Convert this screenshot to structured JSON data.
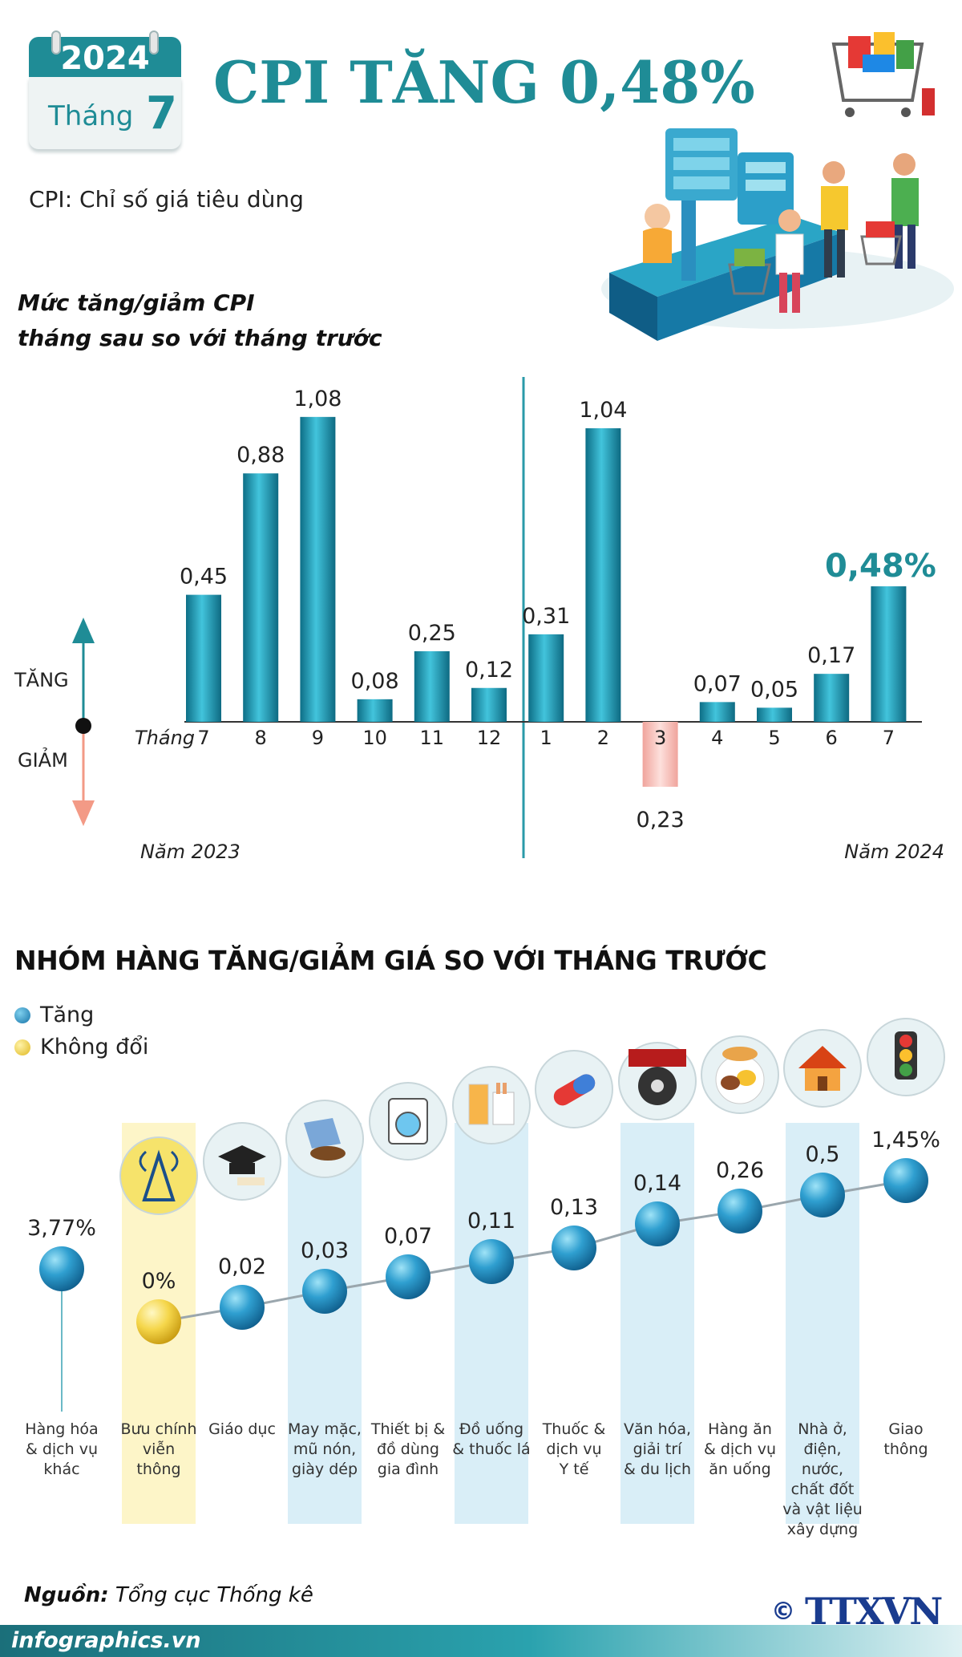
{
  "header": {
    "calendar_year": "2024",
    "calendar_month_label": "Tháng",
    "calendar_month_number": "7",
    "title": "CPI TĂNG 0,48%",
    "subtitle": "CPI: Chỉ số giá tiêu dùng"
  },
  "chart_data": [
    {
      "type": "bar",
      "title": "Mức tăng/giảm CPI tháng sau so với tháng trước",
      "title_lines": [
        "Mức tăng/giảm CPI",
        "tháng sau so với tháng trước"
      ],
      "x_axis_label": "Tháng",
      "categories": [
        "7",
        "8",
        "9",
        "10",
        "11",
        "12",
        "1",
        "2",
        "3",
        "4",
        "5",
        "6",
        "7"
      ],
      "values": [
        0.45,
        0.88,
        1.08,
        0.08,
        0.25,
        0.12,
        0.31,
        1.04,
        -0.23,
        0.07,
        0.05,
        0.17,
        0.48
      ],
      "value_labels": [
        "0,45",
        "0,88",
        "1,08",
        "0,08",
        "0,25",
        "0,12",
        "0,31",
        "1,04",
        "0,23",
        "0,07",
        "0,05",
        "0,17",
        "0,48%"
      ],
      "year_groups": [
        {
          "label": "Năm 2023",
          "categories": [
            "7",
            "8",
            "9",
            "10",
            "11",
            "12"
          ]
        },
        {
          "label": "Năm 2024",
          "categories": [
            "1",
            "2",
            "3",
            "4",
            "5",
            "6",
            "7"
          ]
        }
      ],
      "direction_labels": {
        "up": "TĂNG",
        "down": "GIẢM"
      },
      "highlight_last": true,
      "colors": {
        "increase": "#1f8ea0",
        "decrease": "#f6b6b0",
        "highlight_text": "#1f8c96"
      }
    },
    {
      "type": "scatter",
      "title": "NHÓM HÀNG TĂNG/GIẢM GIÁ SO VỚI THÁNG TRƯỚC",
      "legend": [
        {
          "label": "Tăng",
          "color": "#1e88b8"
        },
        {
          "label": "Không đổi",
          "color": "#f2d24a"
        }
      ],
      "categories": [
        "Hàng hóa & dịch vụ khác",
        "Bưu chính viễn thông",
        "Giáo dục",
        "May mặc, mũ nón, giày dép",
        "Thiết bị & đồ dùng gia đình",
        "Đồ uống & thuốc lá",
        "Thuốc & dịch vụ Y tế",
        "Văn hóa, giải trí & du lịch",
        "Hàng ăn & dịch vụ ăn uống",
        "Nhà ở, điện, nước, chất đốt và vật liệu xây dựng",
        "Giao thông"
      ],
      "values": [
        3.77,
        0,
        0.02,
        0.03,
        0.07,
        0.11,
        0.13,
        0.14,
        0.26,
        0.5,
        1.45
      ],
      "value_labels": [
        "3,77%",
        "0%",
        "0,02",
        "0,03",
        "0,07",
        "0,11",
        "0,13",
        "0,14",
        "0,26",
        "0,5",
        "1,45%"
      ],
      "status": [
        "Tăng",
        "Không đổi",
        "Tăng",
        "Tăng",
        "Tăng",
        "Tăng",
        "Tăng",
        "Tăng",
        "Tăng",
        "Tăng",
        "Tăng"
      ]
    }
  ],
  "group_label_lines": [
    [
      "Hàng hóa",
      "& dịch vụ",
      "khác"
    ],
    [
      "Bưu chính",
      "viễn",
      "thông"
    ],
    [
      "Giáo dục"
    ],
    [
      "May mặc,",
      "mũ nón,",
      "giày dép"
    ],
    [
      "Thiết bị &",
      "đồ dùng",
      "gia đình"
    ],
    [
      "Đồ uống",
      "& thuốc lá"
    ],
    [
      "Thuốc &",
      "dịch vụ",
      "Y tế"
    ],
    [
      "Văn hóa,",
      "giải trí",
      "& du lịch"
    ],
    [
      "Hàng ăn",
      "& dịch vụ",
      "ăn uống"
    ],
    [
      "Nhà ở,",
      "điện,",
      "nước,",
      "chất đốt",
      "và vật liệu",
      "xây dựng"
    ],
    [
      "Giao",
      "thông"
    ]
  ],
  "group_icons": [
    "",
    "signal-tower-icon",
    "graduation-cap-icon",
    "clothes-shoes-icon",
    "washing-machine-icon",
    "drink-cigarette-icon",
    "medicine-capsule-icon",
    "film-reel-icon",
    "food-plate-icon",
    "house-icon",
    "traffic-light-icon"
  ],
  "footer": {
    "source_label": "Nguồn:",
    "source_text": "Tổng cục Thống kê",
    "website": "infographics.vn",
    "agency_mark": "TTXVN",
    "copyright_symbol": "©"
  }
}
